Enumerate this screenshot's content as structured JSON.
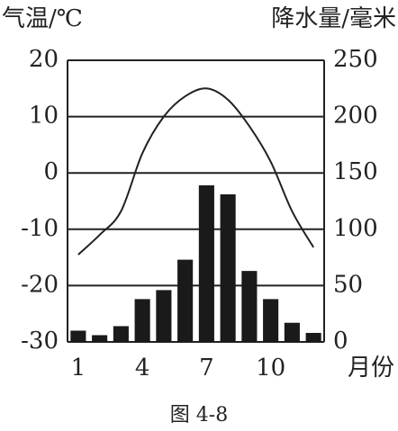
{
  "chart_data": {
    "type": "combo",
    "title": "图 4-8",
    "y_label": "气温/℃",
    "y2_label": "降水量/毫米",
    "x_label": "月份",
    "x": [
      1,
      2,
      3,
      4,
      5,
      6,
      7,
      8,
      9,
      10,
      11,
      12
    ],
    "xlim": [
      0.5,
      12.5
    ],
    "xticks": [
      1,
      4,
      7,
      10
    ],
    "ylim": [
      -30,
      20
    ],
    "yticks": [
      20,
      10,
      0,
      -10,
      -20,
      -30
    ],
    "y2lim": [
      0,
      250
    ],
    "y2ticks": [
      250,
      200,
      150,
      100,
      50,
      0
    ],
    "grid": true,
    "series": [
      {
        "type": "line",
        "color": "#222222",
        "axis": "y",
        "values": [
          -14.5,
          -11,
          -6.8,
          3.5,
          10,
          13.6,
          15,
          13,
          8.3,
          2,
          -6.8,
          -13.2
        ]
      },
      {
        "type": "bar",
        "color": "#1a1a1a",
        "axis": "y2",
        "values": [
          10,
          6,
          14,
          38,
          46,
          73,
          139,
          131,
          63,
          38,
          17,
          8
        ]
      }
    ]
  }
}
